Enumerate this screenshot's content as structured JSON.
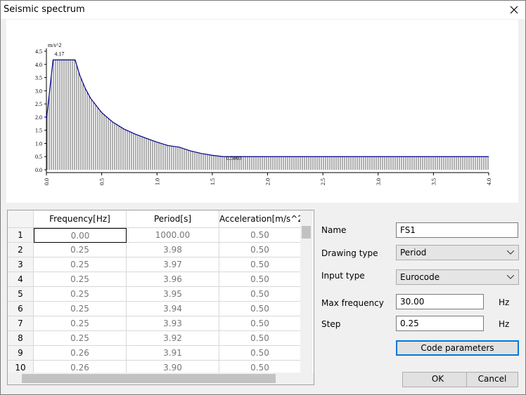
{
  "dialog": {
    "title": "Seismic spectrum"
  },
  "chart_data": {
    "type": "line",
    "y_unit": "m/s^2",
    "x": [
      0,
      0.06,
      0.26,
      0.3,
      0.35,
      0.4,
      0.5,
      0.6,
      0.7,
      0.8,
      0.9,
      1.0,
      1.1,
      1.2,
      1.3,
      1.4,
      1.5,
      1.6,
      2.0,
      2.5,
      3.0,
      3.5,
      4.0
    ],
    "series": [
      {
        "color": "#00008b",
        "values": [
          1.9,
          4.17,
          4.17,
          3.61,
          3.1,
          2.71,
          2.17,
          1.81,
          1.55,
          1.36,
          1.2,
          1.05,
          0.92,
          0.86,
          0.72,
          0.62,
          0.55,
          0.5,
          0.5,
          0.5,
          0.5,
          0.5,
          0.5
        ]
      }
    ],
    "annotations": [
      "4.17",
      "0.5003"
    ],
    "xlim": [
      0,
      4
    ],
    "ylim": [
      0,
      4.5
    ],
    "xticks": [
      {
        "value": 0,
        "label": "0.0"
      },
      0.5,
      {
        "value": 1,
        "label": "1.0"
      },
      1.5,
      {
        "value": 2,
        "label": "2.0"
      },
      2.5,
      {
        "value": 3,
        "label": "3.0"
      },
      3.5,
      {
        "value": 4,
        "label": "4.0"
      }
    ],
    "yticks": [
      {
        "value": 0,
        "label": "0.0"
      },
      0.5,
      {
        "value": 1,
        "label": "1.0"
      },
      1.5,
      {
        "value": 2,
        "label": "2.0"
      },
      2.5,
      {
        "value": 3,
        "label": "3.0"
      },
      3.5,
      {
        "value": 4,
        "label": "4.0"
      },
      4.5
    ]
  },
  "table": {
    "columns": [
      "Frequency[Hz]",
      "Period[s]",
      "Acceleration[m/s^2"
    ],
    "rows": [
      [
        "1",
        "0.00",
        "1000.00",
        "0.50"
      ],
      [
        "2",
        "0.25",
        "3.98",
        "0.50"
      ],
      [
        "3",
        "0.25",
        "3.97",
        "0.50"
      ],
      [
        "4",
        "0.25",
        "3.96",
        "0.50"
      ],
      [
        "5",
        "0.25",
        "3.95",
        "0.50"
      ],
      [
        "6",
        "0.25",
        "3.94",
        "0.50"
      ],
      [
        "7",
        "0.25",
        "3.93",
        "0.50"
      ],
      [
        "8",
        "0.25",
        "3.92",
        "0.50"
      ],
      [
        "9",
        "0.26",
        "3.91",
        "0.50"
      ],
      [
        "10",
        "0.26",
        "3.90",
        "0.50"
      ]
    ]
  },
  "form": {
    "name_label": "Name",
    "name_value": "FS1",
    "drawing_type_label": "Drawing type",
    "drawing_type_value": "Period",
    "input_type_label": "Input type",
    "input_type_value": "Eurocode",
    "max_frequency_label": "Max frequency",
    "max_frequency_value": "30.00",
    "max_frequency_unit": "Hz",
    "step_label": "Step",
    "step_value": "0.25",
    "step_unit": "Hz",
    "code_parameters": "Code parameters",
    "ok": "OK",
    "cancel": "Cancel"
  }
}
